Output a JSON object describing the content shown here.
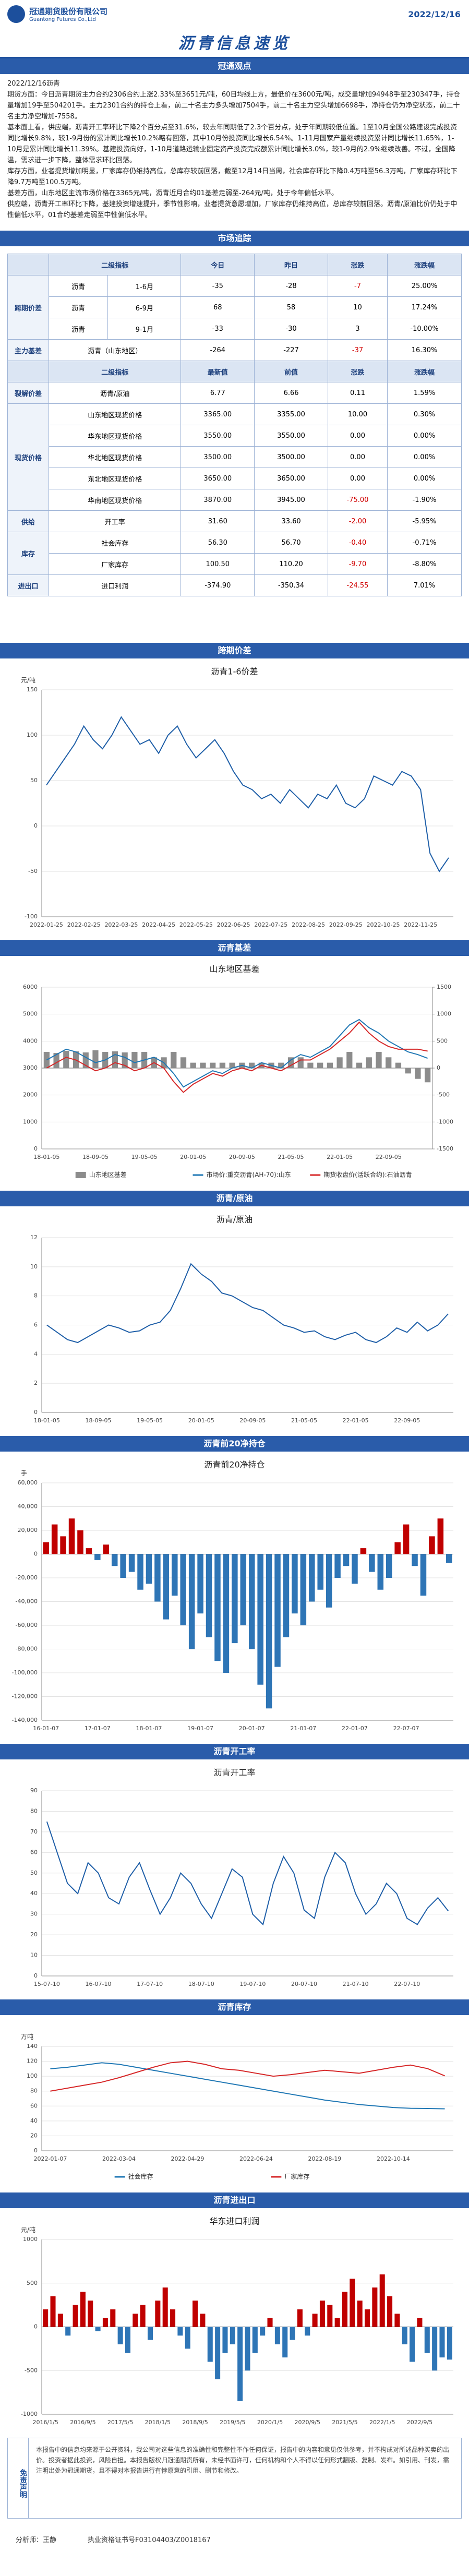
{
  "header": {
    "company_cn": "冠通期货股份有限公司",
    "company_en": "Guantong Futures Co.,Ltd",
    "date": "2022/12/16",
    "title": "沥青信息速览"
  },
  "sections": [
    "冠通观点",
    "市场追踪",
    "跨期价差",
    "沥青基差",
    "沥青/原油",
    "沥青前20净持仓",
    "沥青开工率",
    "沥青库存",
    "沥青进出口"
  ],
  "viewpoint": {
    "heading": "2022/12/16沥青",
    "paragraphs": [
      "期货方面：今日沥青期货主力合约2306合约上涨2.33%至3651元/吨，60日均线上方，最低价在3600元/吨，成交量增加94948手至230347手，持仓量增加19手至504201手。主力2301合约的持仓上看，前二十名主力多头增加7504手，前二十名主力空头增加6698手，净持仓仍为净空状态，前二十名主力净空增加-7558。",
      "基本面上看，供应端，沥青开工率环比下降2个百分点至31.6%，较去年同期低了2.3个百分点，处于年同期较低位置。1至10月全国公路建设完成投资同比增长9.8%，较1-9月份的累计同比增长10.2%略有回落，其中10月份投资同比增长6.54%。1-11月国家产量继续投资累计同比增长11.65%，1-10月是累计同比增长11.39%。基建投资向好，1-10月道路运输业固定资产投资完成额累计同比增长3.0%，较1-9月的2.9%继续改善。不过，全国降温，需求进一步下降，整体需求环比回落。",
      "库存方面，业者提货增加明显，厂家库存仍维持高位，总库存较前回落，截至12月14日当周，社会库存环比下降0.4万吨至56.3万吨，厂家库存环比下降9.7万吨至100.5万吨。",
      "基差方面，山东地区主流市场价格在3365元/吨，沥青近月合约01基差走弱至-264元/吨，处于今年偏低水平。",
      "供应端，沥青开工率环比下降，基建投资增速提升，季节性影响，业者提货意愿增加，厂家库存仍维持高位，总库存较前回落。沥青/原油比价仍处于中性偏低水平，01合约基差走弱至中性偏低水平。"
    ]
  },
  "table": {
    "sections": [
      {
        "header": [
          "二级指标",
          "今日",
          "昨日",
          "涨跌",
          "涨跌幅"
        ],
        "groups": [
          {
            "name": "跨期价差",
            "rows": [
              [
                "沥青",
                "1-6月",
                "-35",
                "-28",
                "-7",
                "25.00%"
              ],
              [
                "沥青",
                "6-9月",
                "68",
                "58",
                "10",
                "17.24%"
              ],
              [
                "沥青",
                "9-1月",
                "-33",
                "-30",
                "3",
                "-10.00%"
              ]
            ]
          },
          {
            "name": "主力基差",
            "rows": [
              [
                "沥青（山东地区）",
                "-264",
                "-227",
                "-37",
                "16.30%"
              ]
            ]
          }
        ]
      },
      {
        "header": [
          "二级指标",
          "最新值",
          "前值",
          "涨跌",
          "涨跌幅"
        ],
        "groups": [
          {
            "name": "裂解价差",
            "rows": [
              [
                "沥青/原油",
                "6.77",
                "6.66",
                "0.11",
                "1.59%"
              ]
            ]
          },
          {
            "name": "现货价格",
            "rows": [
              [
                "山东地区现货价格",
                "3365.00",
                "3355.00",
                "10.00",
                "0.30%"
              ],
              [
                "华东地区现货价格",
                "3550.00",
                "3550.00",
                "0.00",
                "0.00%"
              ],
              [
                "华北地区现货价格",
                "3500.00",
                "3500.00",
                "0.00",
                "0.00%"
              ],
              [
                "东北地区现货价格",
                "3650.00",
                "3650.00",
                "0.00",
                "0.00%"
              ],
              [
                "华南地区现货价格",
                "3870.00",
                "3945.00",
                "-75.00",
                "-1.90%"
              ]
            ]
          },
          {
            "name": "供给",
            "rows": [
              [
                "开工率",
                "31.60",
                "33.60",
                "-2.00",
                "-5.95%"
              ]
            ]
          },
          {
            "name": "库存",
            "rows": [
              [
                "社会库存",
                "56.30",
                "56.70",
                "-0.40",
                "-0.71%"
              ],
              [
                "厂家库存",
                "100.50",
                "110.20",
                "-9.70",
                "-8.80%"
              ]
            ]
          },
          {
            "name": "进出口",
            "rows": [
              [
                "进口利润",
                "-374.90",
                "-350.34",
                "-24.55",
                "7.01%"
              ]
            ]
          }
        ]
      }
    ]
  },
  "chart_data": [
    {
      "type": "line",
      "title": "沥青1-6价差",
      "unit": "元/吨",
      "color": "#1f5fa8",
      "grid": true,
      "categories": [
        "2022-01-25",
        null,
        null,
        null,
        "2022-02-25",
        null,
        null,
        null,
        "2022-03-25",
        null,
        null,
        null,
        "2022-04-25",
        null,
        null,
        null,
        "2022-05-25",
        null,
        null,
        null,
        "2022-06-25",
        null,
        null,
        null,
        "2022-07-25",
        null,
        null,
        null,
        "2022-08-25",
        null,
        null,
        null,
        "2022-09-25",
        null,
        null,
        null,
        "2022-10-25",
        null,
        null,
        null,
        "2022-11-25",
        null,
        null,
        null
      ],
      "values": [
        45,
        60,
        75,
        90,
        110,
        95,
        85,
        100,
        120,
        105,
        90,
        95,
        80,
        100,
        110,
        90,
        75,
        85,
        95,
        80,
        60,
        45,
        40,
        30,
        35,
        25,
        40,
        30,
        20,
        35,
        30,
        45,
        25,
        20,
        30,
        55,
        50,
        45,
        60,
        55,
        40,
        -30,
        -50,
        -35
      ],
      "ylim": [
        -100,
        150
      ],
      "yticks": [
        -100,
        -50,
        0,
        50,
        100,
        150
      ]
    },
    {
      "type": "combo",
      "title": "山东地区基差",
      "grid": true,
      "categories": [
        "18-01-05",
        null,
        null,
        null,
        null,
        "18-09-05",
        null,
        null,
        null,
        null,
        "19-05-05",
        null,
        null,
        null,
        null,
        "20-01-05",
        null,
        null,
        null,
        null,
        "20-09-05",
        null,
        null,
        null,
        null,
        "21-05-05",
        null,
        null,
        null,
        null,
        "22-01-05",
        null,
        null,
        null,
        null,
        "22-09-05",
        null,
        null,
        null,
        null
      ],
      "series": [
        {
          "name": "山东地区基差",
          "kind": "bar",
          "axis": "y2",
          "color": "#8c8c8c",
          "values": [
            300,
            280,
            320,
            310,
            290,
            330,
            300,
            310,
            290,
            300,
            300,
            200,
            200,
            300,
            200,
            100,
            100,
            100,
            100,
            100,
            100,
            100,
            100,
            100,
            100,
            200,
            200,
            100,
            100,
            100,
            200,
            300,
            100,
            200,
            300,
            200,
            100,
            -100,
            -200,
            -264
          ]
        },
        {
          "name": "市场价:重交沥青(AH-70):山东",
          "kind": "line",
          "color": "#1f77b4",
          "values": [
            3300,
            3500,
            3700,
            3600,
            3400,
            3200,
            3300,
            3500,
            3400,
            3200,
            3300,
            3400,
            3200,
            2800,
            2300,
            2500,
            2700,
            2900,
            2800,
            3000,
            3100,
            3000,
            3200,
            3100,
            3000,
            3300,
            3500,
            3400,
            3600,
            3800,
            4200,
            4600,
            4800,
            4500,
            4300,
            4000,
            3800,
            3600,
            3500,
            3365
          ]
        },
        {
          "name": "期货收盘价(活跃合约):石油沥青",
          "kind": "line",
          "color": "#d62728",
          "values": [
            3000,
            3200,
            3400,
            3300,
            3100,
            2900,
            3000,
            3200,
            3100,
            2900,
            3000,
            3200,
            3000,
            2500,
            2100,
            2400,
            2600,
            2800,
            2700,
            2900,
            3000,
            2900,
            3100,
            3000,
            2900,
            3100,
            3300,
            3300,
            3500,
            3700,
            4000,
            4300,
            4700,
            4300,
            4000,
            3800,
            3700,
            3700,
            3700,
            3629
          ]
        }
      ],
      "ylim": [
        0,
        6000
      ],
      "yticks": [
        0,
        1000,
        2000,
        3000,
        4000,
        5000,
        6000
      ],
      "y2lim": [
        -1500,
        1500
      ],
      "y2ticks": [
        -1500,
        -1000,
        -500,
        0,
        500,
        1000,
        1500
      ]
    },
    {
      "type": "line",
      "title": "沥青/原油",
      "color": "#1f5fa8",
      "grid": true,
      "categories": [
        "18-01-05",
        null,
        null,
        null,
        null,
        "18-09-05",
        null,
        null,
        null,
        null,
        "19-05-05",
        null,
        null,
        null,
        null,
        "20-01-05",
        null,
        null,
        null,
        null,
        "20-09-05",
        null,
        null,
        null,
        null,
        "21-05-05",
        null,
        null,
        null,
        null,
        "22-01-05",
        null,
        null,
        null,
        null,
        "22-09-05",
        null,
        null,
        null,
        null
      ],
      "values": [
        6.0,
        5.5,
        5.0,
        4.8,
        5.2,
        5.6,
        6.0,
        5.8,
        5.5,
        5.6,
        6.0,
        6.2,
        7.0,
        8.5,
        10.2,
        9.5,
        9.0,
        8.2,
        8.0,
        7.6,
        7.2,
        7.0,
        6.5,
        6.0,
        5.8,
        5.5,
        5.6,
        5.2,
        5.0,
        5.3,
        5.5,
        5.0,
        4.8,
        5.2,
        5.8,
        5.5,
        6.2,
        5.6,
        6.0,
        6.77
      ],
      "ylim": [
        0,
        12
      ],
      "yticks": [
        0,
        2,
        4,
        6,
        8,
        10,
        12
      ]
    },
    {
      "type": "bar",
      "title": "沥青前20净持仓",
      "unit": "手",
      "color": "#c00000",
      "negative_color": "#2e75b6",
      "grid": true,
      "categories": [
        "16-01-07",
        null,
        null,
        null,
        null,
        null,
        "17-01-07",
        null,
        null,
        null,
        null,
        null,
        "18-01-07",
        null,
        null,
        null,
        null,
        null,
        "19-01-07",
        null,
        null,
        null,
        null,
        null,
        "20-01-07",
        null,
        null,
        null,
        null,
        null,
        "21-01-07",
        null,
        null,
        null,
        null,
        null,
        "22-01-07",
        null,
        null,
        null,
        null,
        null,
        "22-07-07",
        null,
        null,
        null,
        null,
        null
      ],
      "values": [
        10000,
        25000,
        15000,
        30000,
        20000,
        5000,
        -5000,
        8000,
        -10000,
        -20000,
        -15000,
        -30000,
        -25000,
        -40000,
        -55000,
        -35000,
        -60000,
        -80000,
        -50000,
        -70000,
        -90000,
        -100000,
        -75000,
        -60000,
        -80000,
        -110000,
        -130000,
        -95000,
        -70000,
        -50000,
        -60000,
        -40000,
        -30000,
        -45000,
        -20000,
        -10000,
        -25000,
        5000,
        -15000,
        -30000,
        -20000,
        10000,
        25000,
        -10000,
        -35000,
        15000,
        30000,
        -7558
      ],
      "ylim": [
        -140000,
        60000
      ],
      "yticks": [
        {
          "value": -140000,
          "label": "-140,000"
        },
        {
          "value": -120000,
          "label": "-120,000"
        },
        {
          "value": -100000,
          "label": "-100,000"
        },
        {
          "value": -80000,
          "label": "-80,000"
        },
        {
          "value": -60000,
          "label": "-60,000"
        },
        {
          "value": -40000,
          "label": "-40,000"
        },
        {
          "value": -20000,
          "label": "-20,000"
        },
        0,
        {
          "value": 20000,
          "label": "20,000"
        },
        {
          "value": 40000,
          "label": "40,000"
        },
        {
          "value": 60000,
          "label": "60,000"
        }
      ]
    },
    {
      "type": "line",
      "title": "沥青开工率",
      "color": "#1f5fa8",
      "grid": true,
      "categories": [
        "15-07-10",
        null,
        null,
        null,
        null,
        "16-07-10",
        null,
        null,
        null,
        null,
        "17-07-10",
        null,
        null,
        null,
        null,
        "18-07-10",
        null,
        null,
        null,
        null,
        "19-07-10",
        null,
        null,
        null,
        null,
        "20-07-10",
        null,
        null,
        null,
        null,
        "21-07-10",
        null,
        null,
        null,
        null,
        "22-07-10",
        null,
        null,
        null,
        null
      ],
      "values": [
        75,
        60,
        45,
        40,
        55,
        50,
        38,
        35,
        48,
        55,
        42,
        30,
        38,
        50,
        45,
        35,
        28,
        40,
        52,
        48,
        30,
        25,
        45,
        58,
        50,
        32,
        28,
        48,
        60,
        55,
        40,
        30,
        35,
        45,
        40,
        28,
        25,
        33,
        38,
        31.6
      ],
      "ylim": [
        0,
        90
      ],
      "yticks": [
        0,
        10,
        20,
        30,
        40,
        50,
        60,
        70,
        80,
        90
      ]
    },
    {
      "type": "line",
      "unit": "万吨",
      "grid": true,
      "categories": [
        "2022-01-07",
        null,
        null,
        null,
        "2022-03-04",
        null,
        null,
        null,
        "2022-04-29",
        null,
        null,
        null,
        "2022-06-24",
        null,
        null,
        null,
        "2022-08-19",
        null,
        null,
        null,
        "2022-10-14",
        null,
        null,
        null
      ],
      "series": [
        {
          "name": "社会库存",
          "color": "#1f77b4",
          "values": [
            110,
            112,
            115,
            118,
            116,
            112,
            108,
            104,
            100,
            96,
            92,
            88,
            84,
            80,
            76,
            72,
            68,
            65,
            62,
            60,
            58,
            57,
            56.7,
            56.3
          ]
        },
        {
          "name": "厂家库存",
          "color": "#d62728",
          "values": [
            80,
            84,
            88,
            92,
            98,
            105,
            112,
            118,
            120,
            116,
            110,
            108,
            104,
            100,
            102,
            105,
            108,
            106,
            104,
            108,
            112,
            115,
            110.2,
            100.5
          ]
        }
      ],
      "ylim": [
        0,
        140
      ],
      "yticks": [
        0,
        20,
        40,
        60,
        80,
        100,
        120,
        140
      ]
    },
    {
      "type": "bar",
      "title": "华东进口利润",
      "unit": "元/吨",
      "color": "#c00000",
      "negative_color": "#2e75b6",
      "grid": true,
      "categories": [
        "2016/1/5",
        null,
        null,
        null,
        null,
        "2016/9/5",
        null,
        null,
        null,
        null,
        "2017/5/5",
        null,
        null,
        null,
        null,
        "2018/1/5",
        null,
        null,
        null,
        null,
        "2018/9/5",
        null,
        null,
        null,
        null,
        "2019/5/5",
        null,
        null,
        null,
        null,
        "2020/1/5",
        null,
        null,
        null,
        null,
        "2020/9/5",
        null,
        null,
        null,
        null,
        "2021/5/5",
        null,
        null,
        null,
        null,
        "2022/1/5",
        null,
        null,
        null,
        null,
        "2022/9/5",
        null,
        null,
        null,
        null
      ],
      "values": [
        200,
        350,
        150,
        -100,
        250,
        400,
        300,
        -50,
        100,
        200,
        -200,
        -300,
        150,
        250,
        -150,
        300,
        450,
        200,
        -100,
        -250,
        300,
        150,
        -400,
        -600,
        -300,
        -200,
        -850,
        -500,
        -300,
        -100,
        100,
        -200,
        -350,
        -150,
        200,
        -100,
        150,
        300,
        250,
        100,
        400,
        550,
        300,
        200,
        450,
        600,
        350,
        150,
        -200,
        -400,
        100,
        -300,
        -500,
        -350,
        -374.9
      ],
      "ylim": [
        -1000,
        1000
      ],
      "yticks": [
        -1000,
        -500,
        0,
        500,
        1000
      ]
    }
  ],
  "disclaimer": {
    "heading": "免责声明",
    "text": "本报告中的信息均来源于公开资料，我公司对这些信息的准确性和完整性不作任何保证，报告中的内容和意见仅供参考，并不构成对所述品种买卖的出价。投资者据此投资，风险自担。本报告版权归冠通期货所有，未经书面许可，任何机构和个人不得以任何形式翻版、复制、发布。如引用、刊发，需注明出处为冠通期货，且不得对本报告进行有悖原意的引用、删节和修改。"
  },
  "footer": {
    "analyst": "分析师：王静",
    "license": "执业资格证书号F03104403/Z0018167"
  }
}
